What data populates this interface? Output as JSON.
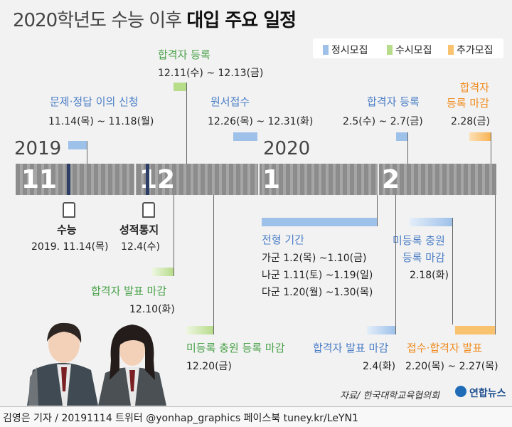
{
  "title_light": "2020학년도 수능 이후",
  "title_bold": "대입 주요 일정",
  "legend": [
    {
      "label": "정시모집",
      "color": "#9ec1ea"
    },
    {
      "label": "수시모집",
      "color": "#b7dc8a"
    },
    {
      "label": "추가모집",
      "color": "#f9c26f"
    }
  ],
  "years": [
    "2019",
    "2020"
  ],
  "months": [
    "11",
    "12",
    "1",
    "2"
  ],
  "events": {
    "objection": {
      "label": "문제·정답 이의 신청",
      "date": "11.14(목) ~ 11.18(월)"
    },
    "sushi_register": {
      "label": "합격자 등록",
      "date": "12.11(수) ~ 12.13(금)"
    },
    "application": {
      "label": "원서접수",
      "date": "12.26(목) ~ 12.31(화)"
    },
    "jeongsi_register": {
      "label": "합격자 등록",
      "date": "2.5(수) ~ 2.7(금)"
    },
    "chuga_register": {
      "label": "합격자\n등록 마감",
      "date": "2.28(금)"
    },
    "suneung": {
      "label": "수능",
      "date": "2019. 11.14(목)"
    },
    "score": {
      "label": "성적통지",
      "date": "12.4(수)"
    },
    "selection": {
      "label": "전형 기간",
      "ga": "가군 1.2(목) ~1.10(금)",
      "na": "나군 1.11(토) ~1.19(일)",
      "da": "다군 1.20(월) ~1.30(목)"
    },
    "sushi_announce": {
      "label": "합격자 발표 마감",
      "date": "12.10(화)"
    },
    "sushi_unreg": {
      "label": "미등록 충원 등록 마감",
      "date": "12.20(금)"
    },
    "jeongsi_announce": {
      "label": "합격자 발표 마감",
      "date": "2.4(화)"
    },
    "jeongsi_unreg": {
      "label": "미등록 충원\n등록 마감",
      "date": "2.18(화)"
    },
    "chuga_apply": {
      "label": "접수·합격자 발표",
      "date": "2.20(목) ~ 2.27(목)"
    }
  },
  "source": "자료/ 한국대학교육협의회",
  "logo": "연합뉴스",
  "footer": "김영은 기자 / 20191114  트위터 @yonhap_graphics  페이스북 tuney.kr/LeYN1"
}
